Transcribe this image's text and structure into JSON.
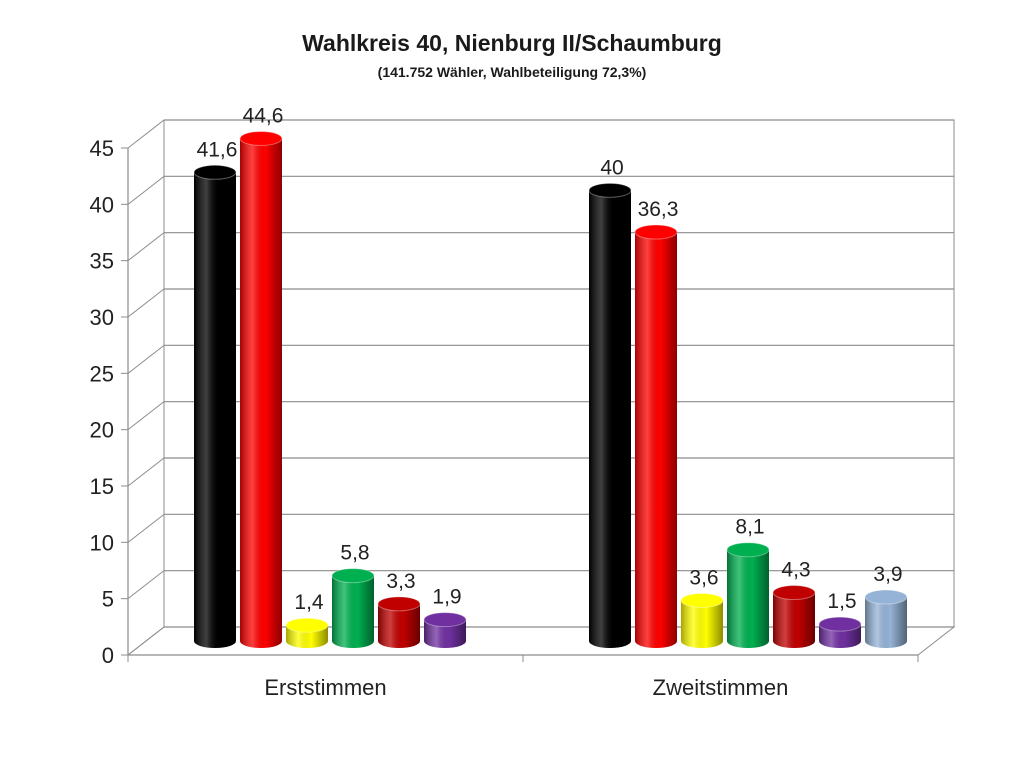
{
  "chart_data": {
    "type": "bar",
    "title": "Wahlkreis 40, Nienburg II/Schaumburg",
    "subtitle": "(141.752 Wähler, Wahlbeteiligung 72,3%)",
    "categories": [
      "Erststimmen",
      "Zweitstimmen"
    ],
    "ylim": [
      0,
      45
    ],
    "yticks": [
      "0",
      "5",
      "10",
      "15",
      "20",
      "25",
      "30",
      "35",
      "40",
      "45"
    ],
    "grid": true,
    "legend": "none",
    "series": [
      {
        "color": "#000000",
        "values": [
          41.6,
          40.0
        ],
        "labels": [
          "41,6",
          "40"
        ]
      },
      {
        "color": "#ff0000",
        "values": [
          44.6,
          36.3
        ],
        "labels": [
          "44,6",
          "36,3"
        ]
      },
      {
        "color": "#ffff00",
        "values": [
          1.4,
          3.6
        ],
        "labels": [
          "1,4",
          "3,6"
        ]
      },
      {
        "color": "#00b050",
        "values": [
          5.8,
          8.1
        ],
        "labels": [
          "5,8",
          "8,1"
        ]
      },
      {
        "color": "#c00000",
        "values": [
          3.3,
          4.3
        ],
        "labels": [
          "3,3",
          "4,3"
        ]
      },
      {
        "color": "#7030a0",
        "values": [
          1.9,
          1.5
        ],
        "labels": [
          "1,9",
          "1,5"
        ]
      },
      {
        "color": "#95b3d7",
        "values": [
          null,
          3.9
        ],
        "labels": [
          "",
          "3,9"
        ]
      }
    ]
  }
}
